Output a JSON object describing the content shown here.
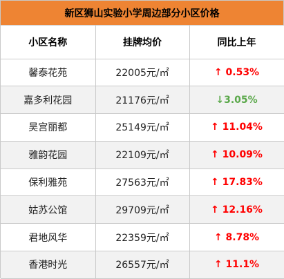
{
  "title": "新区狮山实验小学周边部分小区价格",
  "headers": [
    "小区名称",
    "挂牌均价",
    "同比上年"
  ],
  "price_unit": "元/㎡",
  "colors": {
    "header_bg": "#ee8433",
    "up": "#ff0000",
    "down": "#5aa84a",
    "alt_row": "#f2f2f2"
  },
  "rows": [
    {
      "name": "馨泰花苑",
      "price": "22005",
      "arrow": "↑",
      "change": "0.53%",
      "direction": "up"
    },
    {
      "name": "嘉多利花园",
      "price": "21176",
      "arrow": "↓",
      "change": "3.05%",
      "direction": "down"
    },
    {
      "name": "吴宫丽都",
      "price": "25149",
      "arrow": "↑",
      "change": "11.04%",
      "direction": "up"
    },
    {
      "name": "雅韵花园",
      "price": "22109",
      "arrow": "↑",
      "change": "10.09%",
      "direction": "up"
    },
    {
      "name": "保利雅苑",
      "price": "27563",
      "arrow": "↑",
      "change": "17.83%",
      "direction": "up"
    },
    {
      "name": "姑苏公馆",
      "price": "29709",
      "arrow": "↑",
      "change": "12.16%",
      "direction": "up"
    },
    {
      "name": "君地风华",
      "price": "22359",
      "arrow": "↑",
      "change": "8.78%",
      "direction": "up"
    },
    {
      "name": "香港时光",
      "price": "26557",
      "arrow": "↑",
      "change": "11.1%",
      "direction": "up"
    }
  ]
}
